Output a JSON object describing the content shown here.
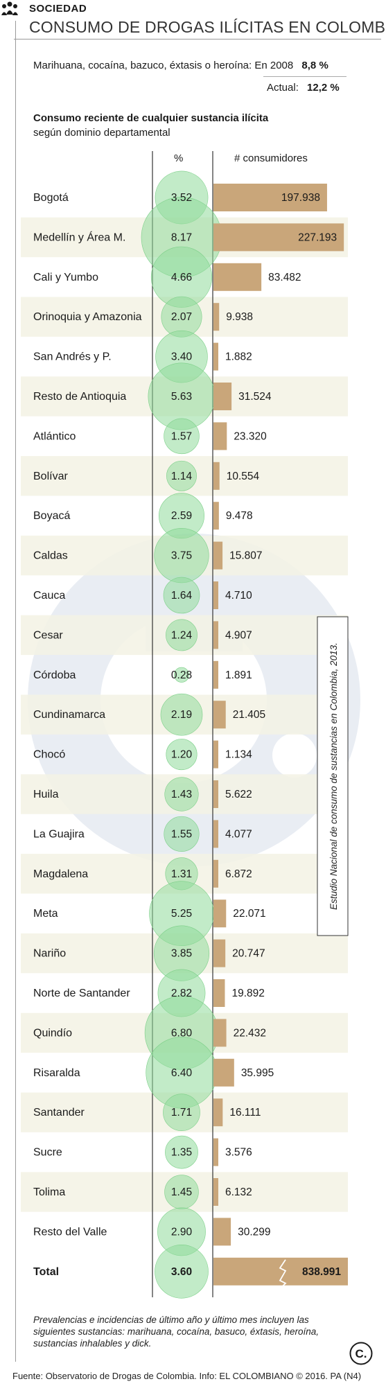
{
  "header": {
    "section": "SOCIEDAD",
    "title": "CONSUMO DE DROGAS ILÍCITAS EN COLOMBIA"
  },
  "summary": {
    "line1_label": "Marihuana, cocaína, bazuco, éxtasis o heroína: En 2008",
    "line1_value": "8,8 %",
    "line2_label": "Actual:",
    "line2_value": "12,2 %"
  },
  "side_note": "Estudio Nacional de consumo de sustancias en Colombia, 2013.",
  "footnote": "Prevalencias e incidencias de último año y último mes incluyen las siguientes sustancias: marihuana, cocaína, basuco, éxtasis, heroína, sustancias inhalables y dick.",
  "source": "Fuente: Observatorio de Drogas de Colombia. Info: EL COLOMBIANO © 2016. PA (N4)",
  "logo_text": "C.",
  "colors": {
    "circle": "#8fdb9a",
    "bar": "#c9a67a",
    "stripe": "#f3f2e4",
    "watermark": "#e9edf3"
  },
  "chart_data": {
    "type": "table",
    "title": "Consumo reciente de cualquier sustancia ilícita",
    "subtitle": "según dominio departamental",
    "columns": [
      "%",
      "# consumidores"
    ],
    "rows": [
      {
        "label": "Bogotá",
        "pct": "3.52",
        "pct_value": 3.52,
        "cons": "197.938",
        "cons_value": 197938
      },
      {
        "label": "Medellín y Área M.",
        "pct": "8.17",
        "pct_value": 8.17,
        "cons": "227.193",
        "cons_value": 227193
      },
      {
        "label": "Cali y Yumbo",
        "pct": "4.66",
        "pct_value": 4.66,
        "cons": "83.482",
        "cons_value": 83482
      },
      {
        "label": "Orinoquia y Amazonia",
        "pct": "2.07",
        "pct_value": 2.07,
        "cons": "9.938",
        "cons_value": 9938
      },
      {
        "label": "San Andrés y P.",
        "pct": "3.40",
        "pct_value": 3.4,
        "cons": "1.882",
        "cons_value": 1882
      },
      {
        "label": "Resto de Antioquia",
        "pct": "5.63",
        "pct_value": 5.63,
        "cons": "31.524",
        "cons_value": 31524
      },
      {
        "label": "Atlántico",
        "pct": "1.57",
        "pct_value": 1.57,
        "cons": "23.320",
        "cons_value": 23320
      },
      {
        "label": "Bolívar",
        "pct": "1.14",
        "pct_value": 1.14,
        "cons": "10.554",
        "cons_value": 10554
      },
      {
        "label": "Boyacá",
        "pct": "2.59",
        "pct_value": 2.59,
        "cons": "9.478",
        "cons_value": 9478
      },
      {
        "label": "Caldas",
        "pct": "3.75",
        "pct_value": 3.75,
        "cons": "15.807",
        "cons_value": 15807
      },
      {
        "label": "Cauca",
        "pct": "1.64",
        "pct_value": 1.64,
        "cons": "4.710",
        "cons_value": 4710
      },
      {
        "label": "Cesar",
        "pct": "1.24",
        "pct_value": 1.24,
        "cons": "4.907",
        "cons_value": 4907
      },
      {
        "label": "Córdoba",
        "pct": "0.28",
        "pct_value": 0.28,
        "cons": "1.891",
        "cons_value": 1891
      },
      {
        "label": "Cundinamarca",
        "pct": "2.19",
        "pct_value": 2.19,
        "cons": "21.405",
        "cons_value": 21405
      },
      {
        "label": "Chocó",
        "pct": "1.20",
        "pct_value": 1.2,
        "cons": "1.134",
        "cons_value": 1134
      },
      {
        "label": "Huila",
        "pct": "1.43",
        "pct_value": 1.43,
        "cons": "5.622",
        "cons_value": 5622
      },
      {
        "label": "La Guajira",
        "pct": "1.55",
        "pct_value": 1.55,
        "cons": "4.077",
        "cons_value": 4077
      },
      {
        "label": "Magdalena",
        "pct": "1.31",
        "pct_value": 1.31,
        "cons": "6.872",
        "cons_value": 6872
      },
      {
        "label": "Meta",
        "pct": "5.25",
        "pct_value": 5.25,
        "cons": "22.071",
        "cons_value": 22071
      },
      {
        "label": "Nariño",
        "pct": "3.85",
        "pct_value": 3.85,
        "cons": "20.747",
        "cons_value": 20747
      },
      {
        "label": "Norte de Santander",
        "pct": "2.82",
        "pct_value": 2.82,
        "cons": "19.892",
        "cons_value": 19892
      },
      {
        "label": "Quindío",
        "pct": "6.80",
        "pct_value": 6.8,
        "cons": "22.432",
        "cons_value": 22432
      },
      {
        "label": "Risaralda",
        "pct": "6.40",
        "pct_value": 6.4,
        "cons": "35.995",
        "cons_value": 35995
      },
      {
        "label": "Santander",
        "pct": "1.71",
        "pct_value": 1.71,
        "cons": "16.111",
        "cons_value": 16111
      },
      {
        "label": "Sucre",
        "pct": "1.35",
        "pct_value": 1.35,
        "cons": "3.576",
        "cons_value": 3576
      },
      {
        "label": "Tolima",
        "pct": "1.45",
        "pct_value": 1.45,
        "cons": "6.132",
        "cons_value": 6132
      },
      {
        "label": "Resto del Valle",
        "pct": "2.90",
        "pct_value": 2.9,
        "cons": "30.299",
        "cons_value": 30299
      }
    ],
    "total": {
      "label": "Total",
      "pct": "3.60",
      "pct_value": 3.6,
      "cons": "838.991",
      "cons_value": 838991
    }
  }
}
